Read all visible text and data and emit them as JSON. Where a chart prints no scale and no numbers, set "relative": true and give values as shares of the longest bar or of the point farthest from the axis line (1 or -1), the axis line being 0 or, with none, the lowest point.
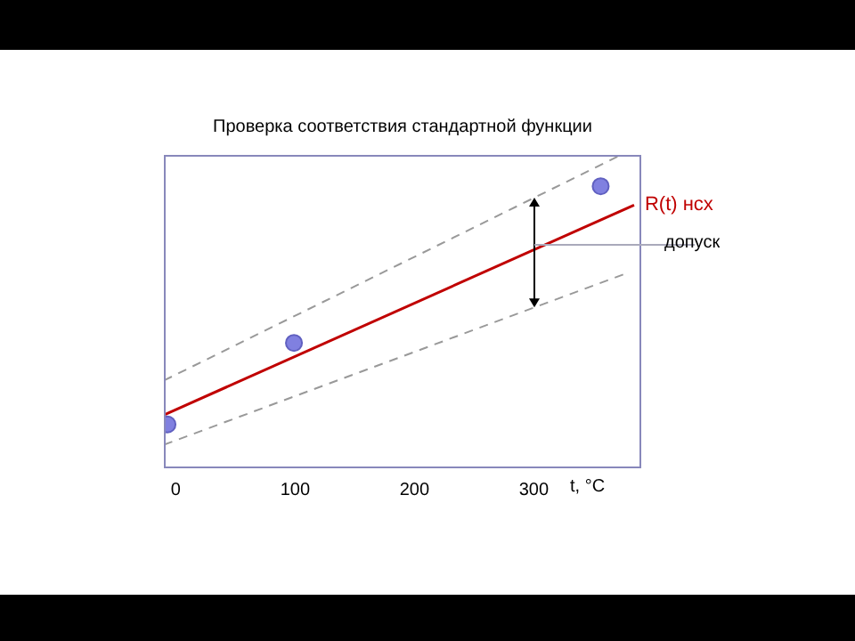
{
  "chart_data": {
    "type": "line",
    "title": "Проверка соответствия стандартной функции",
    "xlabel": "t, °C",
    "relative": true,
    "xlim": [
      -10,
      390
    ],
    "xticks": [
      0,
      100,
      200,
      300
    ],
    "annotations": [
      "допуск"
    ],
    "series": [
      {
        "name": "R(t) нсх",
        "color": "#c00000",
        "x": [
          -10,
          384
        ],
        "values": [
          0.17,
          0.84
        ],
        "line_style": "solid",
        "marker": "none"
      },
      {
        "color": "#999999",
        "x": [
          -10,
          373
        ],
        "values": [
          0.28,
          1
        ],
        "line_style": "dashed",
        "marker": "none"
      },
      {
        "color": "#999999",
        "x": [
          -10,
          376
        ],
        "values": [
          0.075,
          0.62
        ],
        "line_style": "dashed",
        "marker": "none"
      },
      {
        "type": "scatter",
        "color": "#8080e0",
        "x": [
          -7,
          99,
          356
        ],
        "values": [
          0.14,
          0.4,
          0.9
        ],
        "marker": "circle"
      }
    ]
  }
}
